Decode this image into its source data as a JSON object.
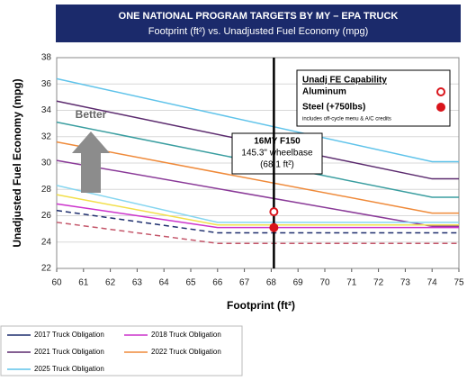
{
  "chart_data": {
    "type": "line",
    "title": "ONE NATIONAL PROGRAM TARGETS BY MY – EPA TRUCK",
    "subtitle": "Footprint (ft²) vs. Unadjusted Fuel Economy (mpg)",
    "x_label": "Footprint  (ft²)",
    "y_label": "Unadjusted Fuel Economy (mpg)",
    "xlim": [
      60,
      75
    ],
    "xticks": [
      60,
      61,
      62,
      63,
      64,
      65,
      66,
      67,
      68,
      69,
      70,
      71,
      72,
      73,
      74,
      75
    ],
    "ylim": [
      22,
      38
    ],
    "yticks": [
      22,
      24,
      26,
      28,
      30,
      32,
      34,
      36,
      38
    ],
    "grid": true,
    "series": [
      {
        "name": "2025 Truck Obligation",
        "color": "#5fc3ea",
        "x": [
          60,
          74,
          75
        ],
        "values": [
          36.4,
          30.1,
          30.1
        ]
      },
      {
        "name": "2021 Truck Obligation",
        "color": "#5b2a6e",
        "x": [
          60,
          74,
          75
        ],
        "values": [
          34.7,
          28.8,
          28.8
        ]
      },
      {
        "color": "#3a9ea0",
        "x": [
          60,
          74,
          75
        ],
        "values": [
          33.1,
          27.4,
          27.4
        ]
      },
      {
        "name": "2022 Truck Obligation",
        "color": "#ef8a3a",
        "x": [
          60,
          74,
          75
        ],
        "values": [
          31.6,
          26.2,
          26.2
        ]
      },
      {
        "color": "#8a3a98",
        "x": [
          60,
          74,
          75
        ],
        "values": [
          30.2,
          25.2,
          25.2
        ]
      },
      {
        "color": "#86d6f0",
        "x": [
          60,
          66,
          75
        ],
        "values": [
          28.3,
          25.5,
          25.5
        ]
      },
      {
        "color": "#f2df4a",
        "x": [
          60,
          66,
          75
        ],
        "values": [
          27.6,
          25.3,
          25.3
        ]
      },
      {
        "name": "2018 Truck Obligation",
        "color": "#cc33cc",
        "x": [
          60,
          66,
          75
        ],
        "values": [
          26.9,
          25.1,
          25.1
        ]
      },
      {
        "name": "2017 Truck Obligation",
        "color": "#1f2f6e",
        "dashed": true,
        "x": [
          60,
          66,
          75
        ],
        "values": [
          26.4,
          24.7,
          24.7
        ]
      },
      {
        "color": "#c4566a",
        "dashed": true,
        "x": [
          60,
          66,
          75
        ],
        "values": [
          25.5,
          23.9,
          23.9
        ]
      }
    ],
    "reference_x": 68.1,
    "points": [
      {
        "name": "Aluminum",
        "x": 68.1,
        "y": 26.3,
        "color": "#d9141b",
        "hollow": true
      },
      {
        "name": "Steel (+750lbs)",
        "x": 68.1,
        "y": 25.1,
        "color": "#d9141b",
        "hollow": false
      }
    ],
    "capability_legend_title": "Unadj FE Capability",
    "capability_note": "includes off-cycle menu & A/C credits",
    "annotation": [
      "16MY F150",
      "145.3\" wheelbase",
      "(68.1 ft²)"
    ],
    "better_label": "Better",
    "legend_order": [
      8,
      7,
      1,
      3,
      0
    ]
  }
}
